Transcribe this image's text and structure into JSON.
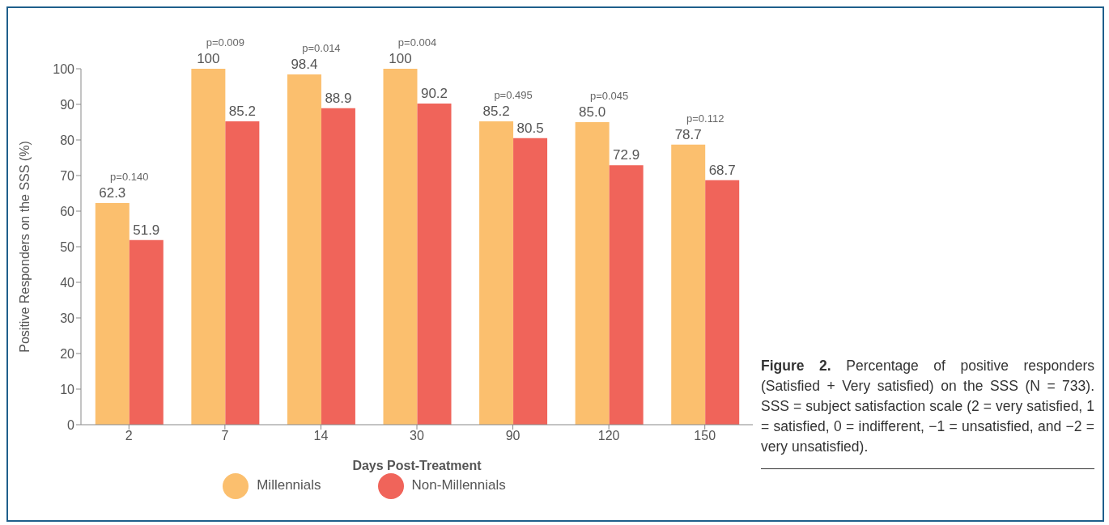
{
  "chart_data": {
    "type": "bar",
    "xlabel": "Days Post-Treatment",
    "ylabel": "Positive Responders on the SSS (%)",
    "categories": [
      "2",
      "7",
      "14",
      "30",
      "90",
      "120",
      "150"
    ],
    "series": [
      {
        "name": "Millennials",
        "color": "#fbbf6e",
        "values": [
          62.3,
          100,
          98.4,
          100,
          85.2,
          85.0,
          78.7
        ],
        "value_labels": [
          "62.3",
          "100",
          "98.4",
          "100",
          "85.2",
          "85.0",
          "78.7"
        ]
      },
      {
        "name": "Non-Millennials",
        "color": "#f0645a",
        "values": [
          51.9,
          85.2,
          88.9,
          90.2,
          80.5,
          72.9,
          68.7
        ],
        "value_labels": [
          "51.9",
          "85.2",
          "88.9",
          "90.2",
          "80.5",
          "72.9",
          "68.7"
        ]
      }
    ],
    "ylim": [
      0,
      100
    ],
    "yticks": [
      0,
      10,
      20,
      30,
      40,
      50,
      60,
      70,
      80,
      90,
      100
    ],
    "grid": false,
    "legend": "bottom",
    "annotations": [
      "p=0.140",
      "p=0.009",
      "p=0.014",
      "p=0.004",
      "p=0.495",
      "p=0.045",
      "p=0.112",
      "Figure 2.",
      "Percentage of positive responders (Satisfied + Very satisfied) on the SSS (N = 733). SSS = subject satisfaction scale (2 = very satisfied, 1 = satisfied, 0 = indifferent, −1 = unsatisfied, and −2 = very unsatisfied)."
    ]
  }
}
